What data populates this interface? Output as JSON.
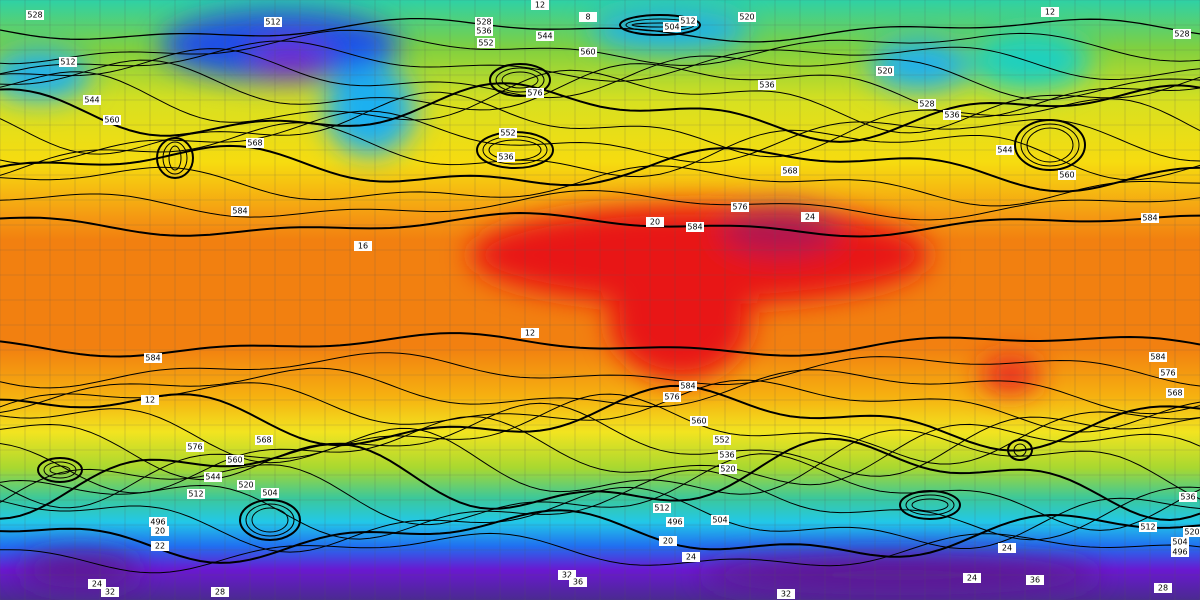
{
  "map": {
    "contour_labels": [
      528,
      512,
      12,
      8,
      528,
      536,
      552,
      544,
      504,
      512,
      520,
      12,
      528,
      512,
      560,
      576,
      552,
      536,
      560,
      544,
      568,
      584,
      536,
      528,
      536,
      520,
      568,
      576,
      584,
      584,
      24,
      20,
      16,
      560,
      544,
      584,
      12,
      576,
      568,
      560,
      544,
      520,
      504,
      512,
      496,
      584,
      576,
      560,
      552,
      536,
      520,
      512,
      496,
      504,
      12,
      20,
      24,
      32,
      36,
      28,
      32,
      24,
      24,
      24,
      28,
      512,
      504,
      496,
      520,
      584,
      576,
      568,
      536,
      32,
      36,
      20,
      22
    ]
  }
}
